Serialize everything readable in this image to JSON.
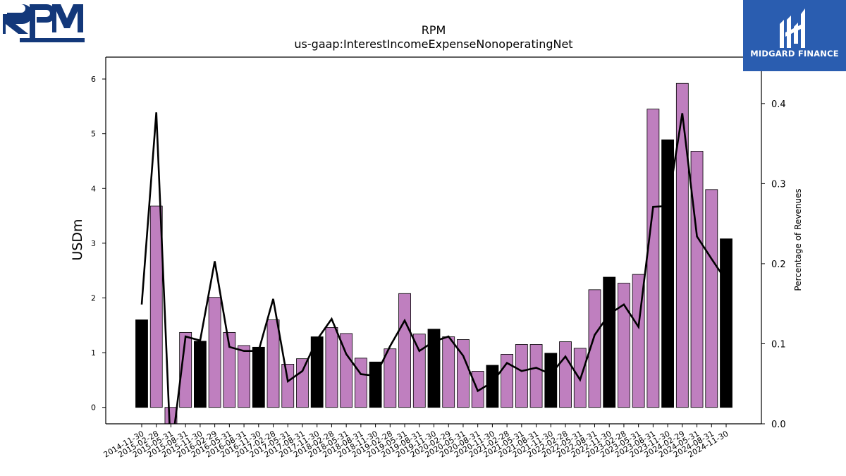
{
  "chart_data": {
    "type": "bar",
    "title": "RPM",
    "subtitle": "us-gaap:InterestIncomeExpenseNonoperatingNet",
    "ylabel": "USDm",
    "y2label": "Percentage of Revenues",
    "ylim": [
      -0.3,
      6.4
    ],
    "y2lim": [
      0.0,
      0.458
    ],
    "yticks": [
      0,
      1,
      2,
      3,
      4,
      5,
      6
    ],
    "y2ticks": [
      0.0,
      0.1,
      0.2,
      0.3,
      0.4
    ],
    "categories": [
      "2014-11-30",
      "2015-02-28",
      "2015-05-31",
      "2015-08-31",
      "2015-11-30",
      "2016-02-29",
      "2016-05-31",
      "2016-08-31",
      "2016-11-30",
      "2017-02-28",
      "2017-05-31",
      "2017-08-31",
      "2017-11-30",
      "2018-02-28",
      "2018-05-31",
      "2018-08-31",
      "2018-11-30",
      "2019-02-28",
      "2019-05-31",
      "2019-08-31",
      "2019-11-30",
      "2020-02-29",
      "2020-05-31",
      "2020-08-31",
      "2020-11-30",
      "2021-02-28",
      "2021-05-31",
      "2021-08-31",
      "2021-11-30",
      "2022-02-28",
      "2022-05-31",
      "2022-08-31",
      "2022-11-30",
      "2023-02-28",
      "2023-05-31",
      "2023-08-31",
      "2023-11-30",
      "2024-02-29",
      "2024-05-31",
      "2024-08-31",
      "2024-11-30"
    ],
    "series": [
      {
        "kind": "bar",
        "values": [
          1.6,
          3.68,
          -0.35,
          1.37,
          1.21,
          2.01,
          1.37,
          1.13,
          1.1,
          1.6,
          0.79,
          0.89,
          1.29,
          1.46,
          1.35,
          0.9,
          0.83,
          1.07,
          2.08,
          1.34,
          1.43,
          1.29,
          1.24,
          0.66,
          0.77,
          0.97,
          1.15,
          1.15,
          0.99,
          1.2,
          1.08,
          2.15,
          2.38,
          2.27,
          2.43,
          5.45,
          4.89,
          5.92,
          4.68,
          3.98,
          3.08
        ],
        "colors": [
          "#000000",
          "#bf7fbf",
          "#bf7fbf",
          "#bf7fbf",
          "#000000",
          "#bf7fbf",
          "#bf7fbf",
          "#bf7fbf",
          "#000000",
          "#bf7fbf",
          "#bf7fbf",
          "#bf7fbf",
          "#000000",
          "#bf7fbf",
          "#bf7fbf",
          "#bf7fbf",
          "#000000",
          "#bf7fbf",
          "#bf7fbf",
          "#bf7fbf",
          "#000000",
          "#bf7fbf",
          "#bf7fbf",
          "#bf7fbf",
          "#000000",
          "#bf7fbf",
          "#bf7fbf",
          "#bf7fbf",
          "#000000",
          "#bf7fbf",
          "#bf7fbf",
          "#bf7fbf",
          "#000000",
          "#bf7fbf",
          "#bf7fbf",
          "#bf7fbf",
          "#000000",
          "#bf7fbf",
          "#bf7fbf",
          "#bf7fbf",
          "#000000"
        ]
      },
      {
        "kind": "line",
        "axis": "right",
        "values": [
          0.149,
          0.389,
          -0.04,
          0.109,
          0.104,
          0.203,
          0.096,
          0.091,
          0.091,
          0.156,
          0.053,
          0.066,
          0.105,
          0.131,
          0.087,
          0.062,
          0.06,
          0.097,
          0.129,
          0.091,
          0.103,
          0.109,
          0.085,
          0.041,
          0.052,
          0.076,
          0.066,
          0.07,
          0.062,
          0.084,
          0.055,
          0.111,
          0.137,
          0.149,
          0.121,
          0.271,
          0.272,
          0.388,
          0.234,
          0.206,
          0.179
        ]
      }
    ],
    "colors": {
      "bar_annual": "#000000",
      "bar_quarter": "#bf7fbf",
      "line": "#000000"
    }
  },
  "logos": {
    "rpm": "RPM",
    "midgard": "MIDGARD FINANCE"
  }
}
